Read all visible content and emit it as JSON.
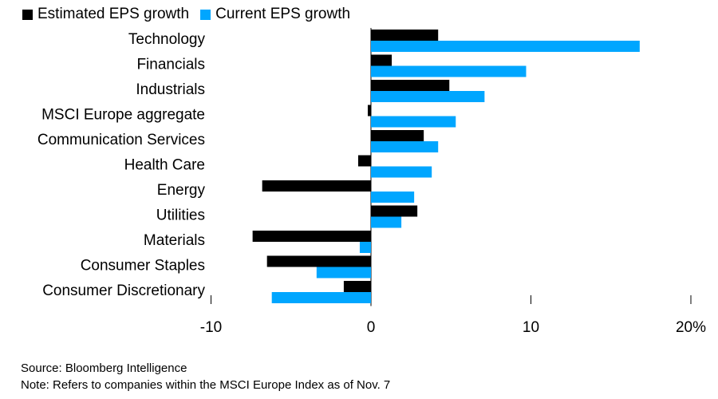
{
  "colors": {
    "estimated": "#000000",
    "current": "#00a6ff"
  },
  "legend": [
    {
      "label": "Estimated EPS growth",
      "color": "#000000"
    },
    {
      "label": "Current EPS growth",
      "color": "#00a6ff"
    }
  ],
  "chart_data": {
    "type": "bar",
    "orientation": "horizontal",
    "categories": [
      "Technology",
      "Financials",
      "Industrials",
      "MSCI Europe aggregate",
      "Communication Services",
      "Health Care",
      "Energy",
      "Utilities",
      "Materials",
      "Consumer Staples",
      "Consumer Discretionary"
    ],
    "series": [
      {
        "name": "Estimated EPS growth",
        "values": [
          4.2,
          1.3,
          4.9,
          -0.2,
          3.3,
          -0.8,
          -6.8,
          2.9,
          -7.4,
          -6.5,
          -1.7
        ]
      },
      {
        "name": "Current EPS growth",
        "values": [
          16.8,
          9.7,
          7.1,
          5.3,
          4.2,
          3.8,
          2.7,
          1.9,
          -0.7,
          -3.4,
          -6.2
        ]
      }
    ],
    "xlim": [
      -10,
      20
    ],
    "ticks": [
      -10,
      0,
      10,
      20
    ],
    "tick_labels": [
      "-10",
      "0",
      "10",
      "20%"
    ],
    "xlabel": "",
    "ylabel": "",
    "title": ""
  },
  "footnotes": {
    "source": "Source: Bloomberg Intelligence",
    "note": "Note: Refers to companies within the MSCI Europe Index as of Nov. 7"
  }
}
